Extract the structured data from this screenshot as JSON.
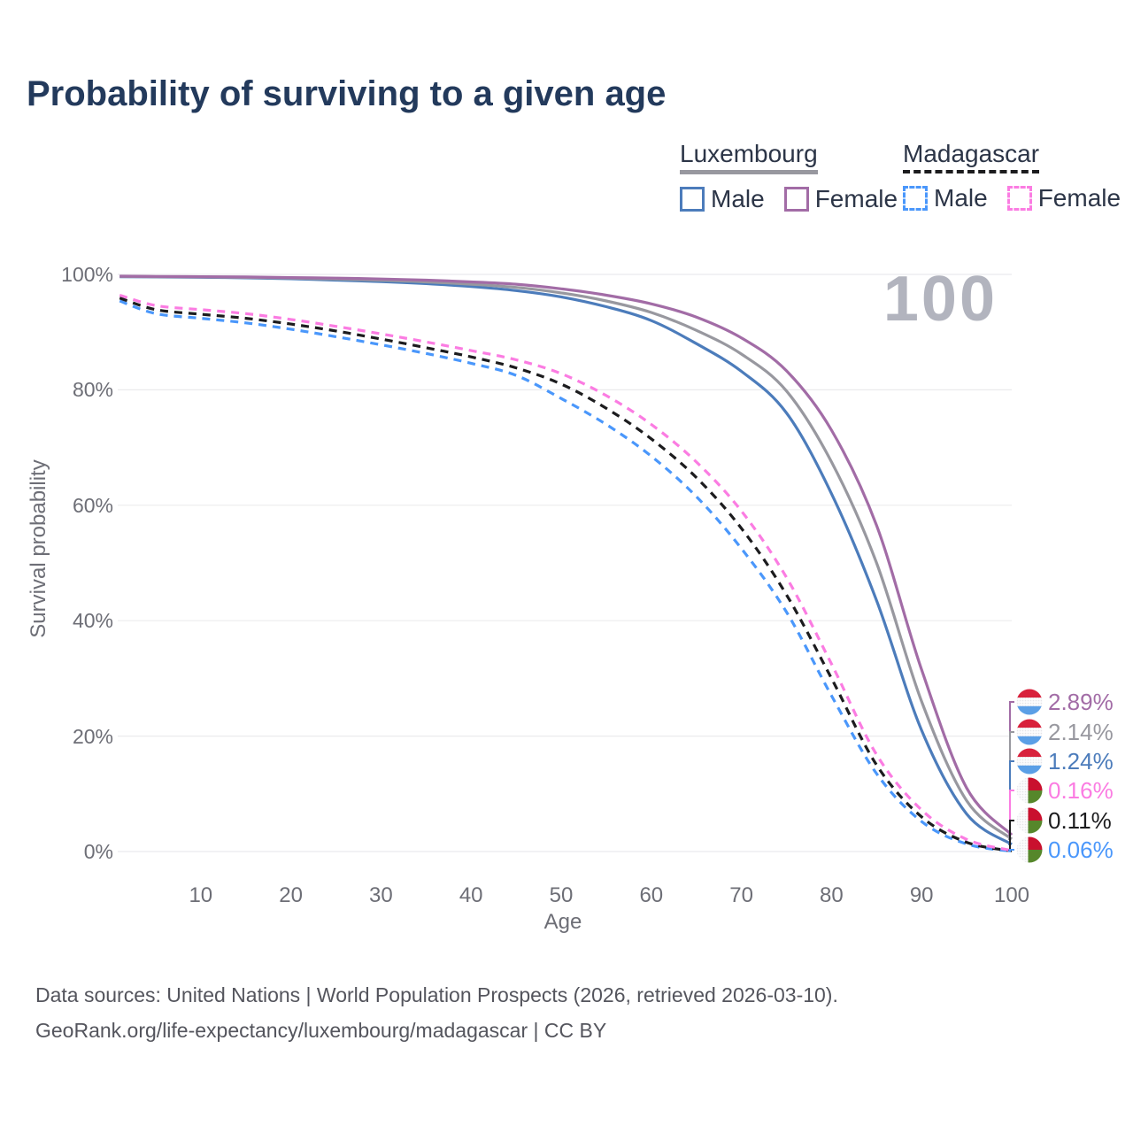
{
  "title": "Probability of surviving to a given age",
  "watermark": "100",
  "theme": {
    "background": "#ffffff",
    "grid": "#ebebed",
    "axis_text": "#6d6e76",
    "title_text": "#233a5c",
    "legend_text": "#2c3547",
    "footer_text": "#54555d",
    "watermark_text": "#b2b4be"
  },
  "flag_colors": {
    "luxembourg_red": "#d8213c",
    "luxembourg_blue": "#5b9fe6",
    "madagascar_red": "#c9102e",
    "madagascar_green": "#56872b"
  },
  "legend": {
    "groups": [
      {
        "name": "Luxembourg",
        "underline": "solid",
        "underline_color": "#98989f",
        "items": [
          {
            "label": "Male",
            "color": "#4c7cbb",
            "dash": false
          },
          {
            "label": "Female",
            "color": "#a26ca6",
            "dash": false
          }
        ]
      },
      {
        "name": "Madagascar",
        "underline": "dashed",
        "underline_color": "#1c1c1e",
        "items": [
          {
            "label": "Male",
            "color": "#4a97fb",
            "dash": true
          },
          {
            "label": "Female",
            "color": "#fb7ce2",
            "dash": true
          }
        ]
      }
    ]
  },
  "axes": {
    "xlabel": "Age",
    "ylabel": "Survival probability",
    "x_ticks": [
      10,
      20,
      30,
      40,
      50,
      60,
      70,
      80,
      90,
      100
    ],
    "y_ticks": [
      {
        "label": "100%",
        "value": 100
      },
      {
        "label": "80%",
        "value": 80
      },
      {
        "label": "60%",
        "value": 60
      },
      {
        "label": "40%",
        "value": 40
      },
      {
        "label": "20%",
        "value": 20
      },
      {
        "label": "0%",
        "value": 0
      }
    ]
  },
  "chart_data": {
    "type": "line",
    "title": "Probability of surviving to a given age",
    "xlabel": "Age",
    "ylabel": "Survival probability",
    "x_range": [
      0,
      100
    ],
    "y_range": [
      0,
      100
    ],
    "grid": "horizontal",
    "legend_position": "top-right",
    "ages": [
      1,
      5,
      10,
      15,
      20,
      25,
      30,
      35,
      40,
      45,
      50,
      55,
      60,
      65,
      70,
      75,
      80,
      85,
      90,
      95,
      100
    ],
    "series": [
      {
        "name": "Luxembourg Male",
        "color": "#4c7cbb",
        "style": "solid",
        "values": [
          99.6,
          99.55,
          99.5,
          99.4,
          99.25,
          99.0,
          98.75,
          98.4,
          97.9,
          97.2,
          96.1,
          94.4,
          92.0,
          88.0,
          83.2,
          76.0,
          62.0,
          43.5,
          21.0,
          6.5,
          1.24
        ]
      },
      {
        "name": "Luxembourg Both sexes",
        "color": "#98989f",
        "style": "solid",
        "values": [
          99.65,
          99.6,
          99.55,
          99.48,
          99.35,
          99.18,
          98.98,
          98.7,
          98.3,
          97.75,
          96.8,
          95.4,
          93.4,
          90.3,
          86.2,
          79.8,
          67.5,
          50.0,
          26.0,
          8.8,
          2.14
        ]
      },
      {
        "name": "Luxembourg Female",
        "color": "#a26ca6",
        "style": "solid",
        "values": [
          99.7,
          99.65,
          99.6,
          99.55,
          99.45,
          99.35,
          99.2,
          99.0,
          98.7,
          98.3,
          97.5,
          96.4,
          94.9,
          92.6,
          89.0,
          83.3,
          73.0,
          56.5,
          31.5,
          11.0,
          2.89
        ]
      },
      {
        "name": "Madagascar Male",
        "color": "#4a97fb",
        "style": "dashed",
        "values": [
          95.4,
          93.2,
          92.4,
          91.6,
          90.5,
          89.2,
          87.8,
          86.3,
          84.6,
          82.5,
          78.5,
          74.0,
          68.5,
          61.5,
          52.5,
          41.5,
          27.0,
          13.5,
          5.2,
          1.3,
          0.06
        ]
      },
      {
        "name": "Madagascar Both sexes",
        "color": "#1c1c1e",
        "style": "dashed",
        "values": [
          95.9,
          93.9,
          93.1,
          92.4,
          91.4,
          90.2,
          88.8,
          87.3,
          85.7,
          83.8,
          81.0,
          76.8,
          71.5,
          64.8,
          56.0,
          44.5,
          30.0,
          15.0,
          6.0,
          1.6,
          0.11
        ]
      },
      {
        "name": "Madagascar Female",
        "color": "#fb7ce2",
        "style": "dashed",
        "values": [
          96.4,
          94.6,
          93.9,
          93.2,
          92.2,
          91.0,
          89.7,
          88.3,
          86.8,
          85.2,
          82.8,
          79.0,
          74.0,
          67.5,
          59.0,
          47.5,
          32.5,
          16.8,
          7.2,
          2.1,
          0.16
        ]
      }
    ],
    "end_labels": [
      {
        "flag": "luxembourg",
        "series": "Luxembourg Female",
        "text": "2.89%",
        "value": 2.89,
        "color": "#a26ca6"
      },
      {
        "flag": "luxembourg",
        "series": "Luxembourg Both sexes",
        "text": "2.14%",
        "value": 2.14,
        "color": "#98989f"
      },
      {
        "flag": "luxembourg",
        "series": "Luxembourg Male",
        "text": "1.24%",
        "value": 1.24,
        "color": "#4c7cbb"
      },
      {
        "flag": "madagascar",
        "series": "Madagascar Female",
        "text": "0.16%",
        "value": 0.16,
        "color": "#fb7ce2"
      },
      {
        "flag": "madagascar",
        "series": "Madagascar Both sexes",
        "text": "0.11%",
        "value": 0.11,
        "color": "#1c1c1e"
      },
      {
        "flag": "madagascar",
        "series": "Madagascar Male",
        "text": "0.06%",
        "value": 0.06,
        "color": "#4a97fb"
      }
    ]
  },
  "footer": {
    "line1": "Data sources: United Nations | World Population Prospects (2026, retrieved 2026-03-10).",
    "line2": "GeoRank.org/life-expectancy/luxembourg/madagascar | CC BY"
  }
}
